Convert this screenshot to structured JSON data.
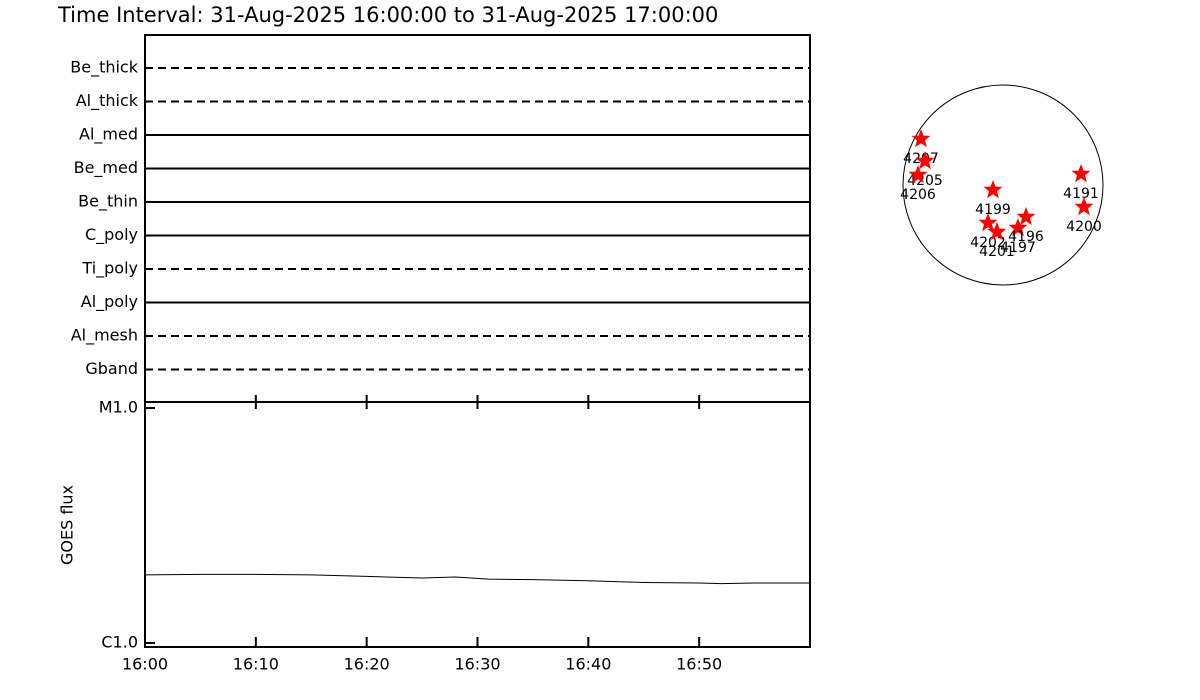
{
  "title": "Time Interval: 31-Aug-2025 16:00:00 to 31-Aug-2025 17:00:00",
  "chart_data": [
    {
      "type": "timeline",
      "categories": [
        "Be_thick",
        "Al_thick",
        "Al_med",
        "Be_med",
        "Be_thin",
        "C_poly",
        "Ti_poly",
        "Al_poly",
        "Al_mesh",
        "Gband"
      ],
      "line_styles": [
        "dashed",
        "dashed",
        "solid",
        "solid",
        "solid",
        "solid",
        "dashed",
        "solid",
        "dashed",
        "dashed"
      ],
      "color": "#000000"
    },
    {
      "type": "line",
      "ylabel": "GOES flux",
      "log_scale": true,
      "x": [
        0,
        5,
        10,
        15,
        20,
        25,
        28,
        31,
        35,
        40,
        45,
        50,
        52,
        55,
        60
      ],
      "series": [
        {
          "color": "#000000",
          "values": [
            1.95e-06,
            1.96e-06,
            1.96e-06,
            1.95e-06,
            1.92e-06,
            1.89e-06,
            1.91e-06,
            1.87e-06,
            1.86e-06,
            1.84e-06,
            1.81e-06,
            1.8e-06,
            1.79e-06,
            1.8e-06,
            1.8e-06
          ]
        }
      ],
      "xlim": [
        0,
        60
      ],
      "xticks": [
        {
          "value": 0,
          "label": "16:00"
        },
        {
          "value": 10,
          "label": "16:10"
        },
        {
          "value": 20,
          "label": "16:20"
        },
        {
          "value": 30,
          "label": "16:30"
        },
        {
          "value": 40,
          "label": "16:40"
        },
        {
          "value": 50,
          "label": "16:50"
        }
      ],
      "ylim": [
        1e-06,
        1e-05
      ],
      "yticks": [
        {
          "value": 1e-06,
          "label": "C1.0"
        },
        {
          "value": 1e-05,
          "label": "M1.0"
        }
      ]
    },
    {
      "type": "disk",
      "color": "#ff0000",
      "labels": [
        "4207",
        "4205",
        "4206",
        "4199",
        "4202",
        "4201",
        "4197",
        "4196",
        "4191",
        "4200"
      ],
      "x": [
        -0.82,
        -0.78,
        -0.85,
        -0.1,
        -0.15,
        -0.06,
        0.15,
        0.23,
        0.78,
        0.81
      ],
      "y": [
        0.46,
        0.24,
        0.1,
        -0.05,
        -0.38,
        -0.47,
        -0.43,
        -0.32,
        0.11,
        -0.22
      ],
      "xlim": [
        -1,
        1
      ],
      "ylim": [
        -1,
        1
      ]
    }
  ]
}
